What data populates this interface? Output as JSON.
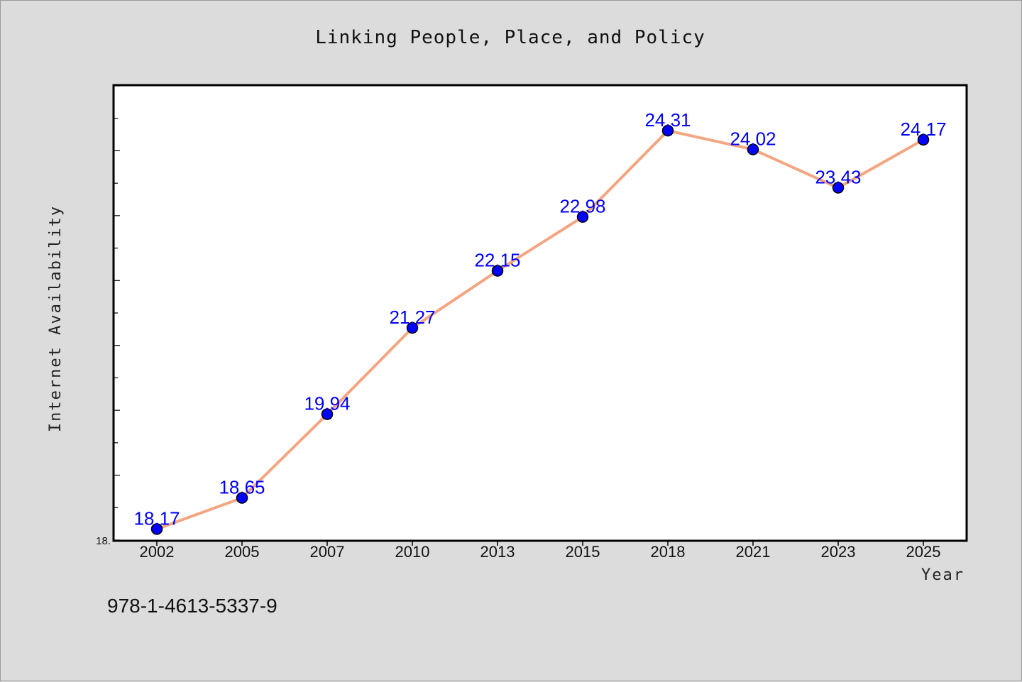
{
  "chart_data": {
    "type": "line",
    "title": "Linking People, Place, and Policy",
    "xlabel": "Year",
    "ylabel": "Internet Availability",
    "categories": [
      "2002",
      "2005",
      "2007",
      "2010",
      "2013",
      "2015",
      "2018",
      "2021",
      "2023",
      "2025"
    ],
    "series": [
      {
        "values": [
          18.17,
          18.65,
          19.94,
          21.27,
          22.15,
          22.98,
          24.31,
          24.02,
          23.43,
          24.17
        ],
        "labels": [
          "18.17",
          "18.65",
          "19.94",
          "21.27",
          "22.15",
          "22.98",
          "24.31",
          "24.02",
          "23.43",
          "24.17"
        ]
      }
    ],
    "ylim": [
      18.0,
      25.0
    ],
    "y_tick_label": "18.",
    "grid": false,
    "line_color": "#f4a582",
    "marker_color": "#0000ff",
    "label_color": "#0000ff"
  },
  "footer": {
    "isbn": "978-1-4613-5337-9"
  }
}
